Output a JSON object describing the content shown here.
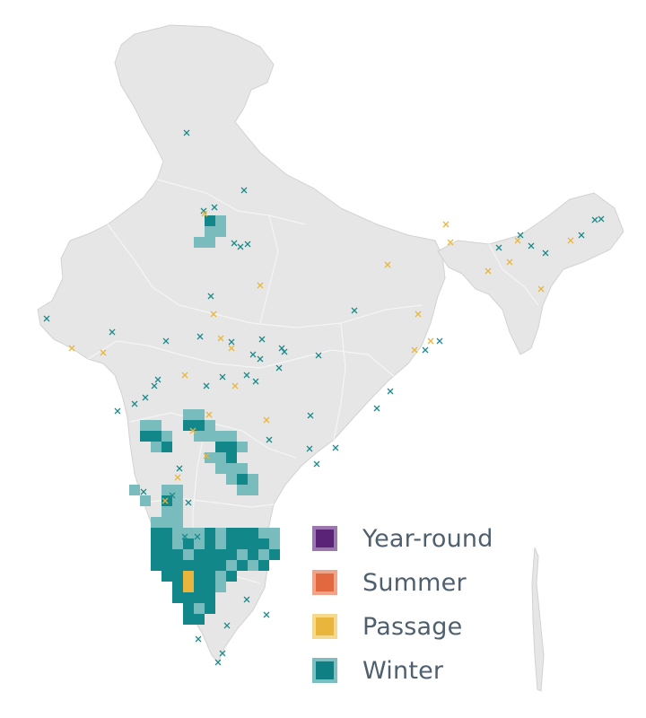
{
  "map": {
    "region": "India",
    "colors": {
      "land": "#e6e6e6",
      "land_stroke": "#d2d2d2",
      "border": "#f4f4f4",
      "winter_fill_dark": "#12878a",
      "winter_fill_light": "#78bcbe",
      "winter_marker": "#1d8a8c",
      "passage_marker": "#e9b53c",
      "summer_fill": "#e86e45"
    }
  },
  "legend": {
    "items": [
      {
        "label": "Year-round",
        "color": "#5a2377",
        "border": "#9a78ad"
      },
      {
        "label": "Summer",
        "color": "#e2683f",
        "border": "#f0a58a"
      },
      {
        "label": "Passage",
        "color": "#e9b53c",
        "border": "#f4d98e"
      },
      {
        "label": "Winter",
        "color": "#0f7f83",
        "border": "#7cbfc1"
      }
    ]
  }
}
